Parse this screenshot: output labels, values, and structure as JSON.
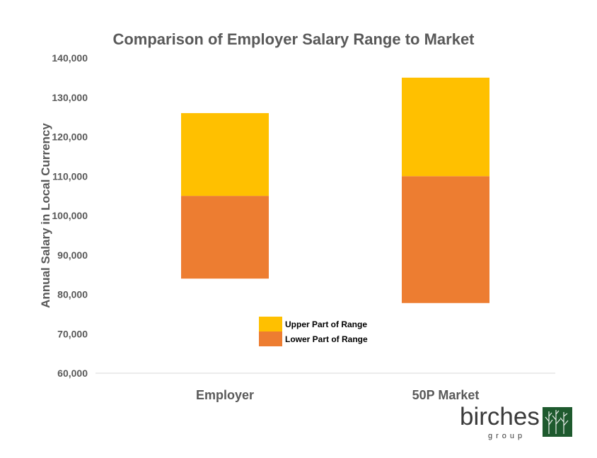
{
  "chart_data": {
    "type": "bar",
    "stacked": "floating",
    "title": "Comparison of Employer Salary Range to Market",
    "ylabel": "Annual Salary in Local Currency",
    "xlabel": "",
    "ylim": [
      60000,
      140000
    ],
    "yticks": [
      60000,
      70000,
      80000,
      90000,
      100000,
      110000,
      120000,
      130000,
      140000
    ],
    "ytick_labels": [
      "60,000",
      "70,000",
      "80,000",
      "90,000",
      "100,000",
      "110,000",
      "120,000",
      "130,000",
      "140,000"
    ],
    "categories": [
      "Employer",
      "50P Market"
    ],
    "series": [
      {
        "name": "Lower Part of Range",
        "color": "#ED7D31",
        "ranges": [
          [
            84000,
            105000
          ],
          [
            77800,
            110000
          ]
        ]
      },
      {
        "name": "Upper Part of Range",
        "color": "#FFC000",
        "ranges": [
          [
            105000,
            126000
          ],
          [
            110000,
            135000
          ]
        ]
      }
    ],
    "legend": {
      "placement": "center",
      "items": [
        "Upper Part of Range",
        "Lower Part of Range"
      ]
    },
    "grid": false
  },
  "logo": {
    "name": "birches",
    "subtitle": "group",
    "icon": "tree-logo-icon",
    "color": "#1E5A2E"
  }
}
